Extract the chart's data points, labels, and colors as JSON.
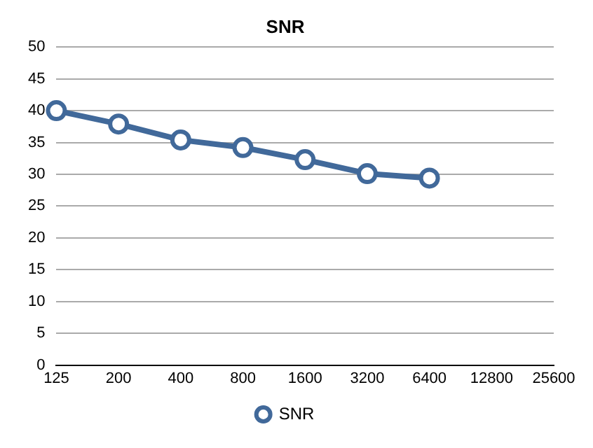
{
  "chart_data": {
    "type": "line",
    "title": "SNR",
    "categories": [
      "125",
      "200",
      "400",
      "800",
      "1600",
      "3200",
      "6400",
      "12800",
      "25600"
    ],
    "series": [
      {
        "name": "SNR",
        "color": "#41699a",
        "values": [
          40,
          37.9,
          35.4,
          34.2,
          32.3,
          30.1,
          29.4,
          null,
          null
        ]
      }
    ],
    "ylim": [
      0,
      50
    ],
    "yticks": [
      0,
      5,
      10,
      15,
      20,
      25,
      30,
      35,
      40,
      45,
      50
    ],
    "grid": "y",
    "legend": "bottom",
    "marker": "circle",
    "line_style": "solid"
  }
}
